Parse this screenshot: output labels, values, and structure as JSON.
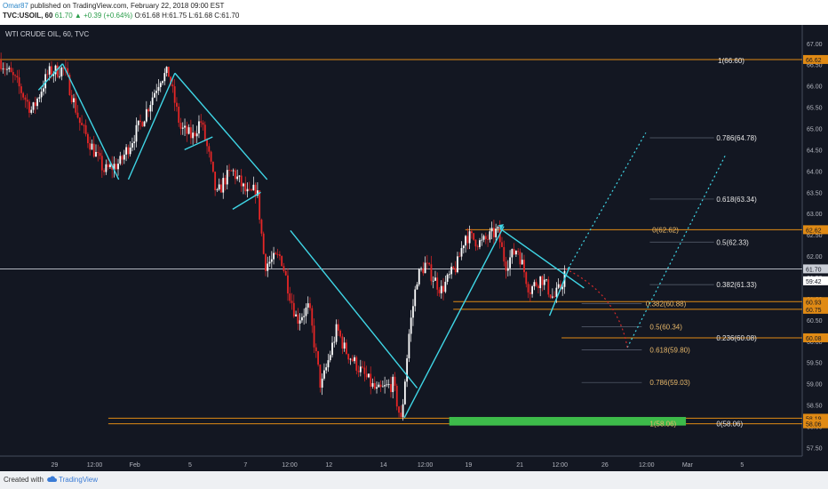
{
  "header": {
    "author": "Omar87",
    "published": "published on TradingView.com, February 22, 2018 09:00 EST",
    "symbol_line": "TVC:USOIL, 60",
    "change": "61.70 ▲ +0.39 (+0.64%)",
    "ohlc": "O:61.68 H:61.75 L:61.68 C:61.70"
  },
  "footer": {
    "created_with": "Created with",
    "brand": "TradingView"
  },
  "chart_data": {
    "type": "candlestick",
    "title": "WTI CRUDE OIL, 60, TVC",
    "ylim": [
      57.3,
      67.35
    ],
    "y_ticks": [
      57.5,
      58.0,
      58.5,
      59.0,
      59.5,
      60.0,
      60.5,
      61.0,
      61.5,
      62.0,
      62.5,
      63.0,
      63.5,
      64.0,
      64.5,
      65.0,
      65.5,
      66.0,
      66.5,
      67.0
    ],
    "x_ticks": [
      "29",
      "12:00",
      "Feb",
      "5",
      "7",
      "12:00",
      "12",
      "14",
      "12:00",
      "19",
      "21",
      "12:00",
      "26",
      "12:00",
      "Mar",
      "5"
    ],
    "x_tick_pos": [
      0.068,
      0.118,
      0.168,
      0.237,
      0.306,
      0.361,
      0.41,
      0.478,
      0.53,
      0.584,
      0.648,
      0.698,
      0.754,
      0.806,
      0.857,
      0.925
    ],
    "price_waypoints": [
      [
        0,
        66.6
      ],
      [
        0.02,
        66.1
      ],
      [
        0.04,
        65.4
      ],
      [
        0.06,
        66.3
      ],
      [
        0.08,
        66.4
      ],
      [
        0.1,
        65.1
      ],
      [
        0.13,
        64.0
      ],
      [
        0.15,
        64.2
      ],
      [
        0.18,
        65.3
      ],
      [
        0.2,
        66.2
      ],
      [
        0.21,
        66.3
      ],
      [
        0.225,
        65.0
      ],
      [
        0.24,
        64.8
      ],
      [
        0.25,
        65.2
      ],
      [
        0.26,
        64.4
      ],
      [
        0.27,
        63.4
      ],
      [
        0.28,
        63.8
      ],
      [
        0.29,
        64.0
      ],
      [
        0.31,
        63.4
      ],
      [
        0.32,
        63.6
      ],
      [
        0.33,
        61.8
      ],
      [
        0.35,
        62.0
      ],
      [
        0.36,
        61.2
      ],
      [
        0.37,
        60.5
      ],
      [
        0.385,
        60.8
      ],
      [
        0.4,
        58.9
      ],
      [
        0.42,
        60.3
      ],
      [
        0.43,
        59.8
      ],
      [
        0.45,
        59.3
      ],
      [
        0.47,
        58.8
      ],
      [
        0.49,
        59.0
      ],
      [
        0.5,
        58.1
      ],
      [
        0.51,
        60.2
      ],
      [
        0.52,
        61.5
      ],
      [
        0.53,
        61.8
      ],
      [
        0.55,
        61.2
      ],
      [
        0.57,
        61.8
      ],
      [
        0.58,
        62.5
      ],
      [
        0.6,
        62.3
      ],
      [
        0.62,
        62.6
      ],
      [
        0.63,
        61.8
      ],
      [
        0.645,
        62.2
      ],
      [
        0.66,
        61.2
      ],
      [
        0.675,
        61.5
      ],
      [
        0.69,
        61.0
      ],
      [
        0.7,
        61.3
      ],
      [
        0.705,
        61.7
      ]
    ],
    "price_labels": [
      {
        "value": 66.62,
        "label": "66.62"
      },
      {
        "value": 62.62,
        "label": "62.62"
      },
      {
        "value": 61.7,
        "label": "61.70"
      },
      {
        "value": 61.42,
        "label": "59:42"
      },
      {
        "value": 60.93,
        "label": "60.93"
      },
      {
        "value": 60.75,
        "label": "60.75"
      },
      {
        "value": 60.08,
        "label": "60.08"
      },
      {
        "value": 58.19,
        "label": "58.19"
      },
      {
        "value": 58.06,
        "label": "58.06"
      }
    ],
    "fib_levels": [
      {
        "label": "1(66.60)",
        "value": 66.6
      },
      {
        "label": "0.786(64.78)",
        "value": 64.78
      },
      {
        "label": "0.618(63.34)",
        "value": 63.34
      },
      {
        "label": "0(62.62)",
        "value": 62.62
      },
      {
        "label": "0.5(62.33)",
        "value": 62.33
      },
      {
        "label": "0.382(61.33)",
        "value": 61.33
      },
      {
        "label": "0.382(60.88)",
        "value": 60.88
      },
      {
        "label": "0.5(60.34)",
        "value": 60.34
      },
      {
        "label": "0.236(60.08)",
        "value": 60.08
      },
      {
        "label": "0.618(59.80)",
        "value": 59.8
      },
      {
        "label": "0.786(59.03)",
        "value": 59.03
      },
      {
        "label": "1(58.06)",
        "value": 58.06
      },
      {
        "label": "0(58.06)",
        "value": 58.06
      }
    ],
    "colors": {
      "background": "#131722",
      "axis_bg": "#131722",
      "up": "#ffffff",
      "down": "#e62626",
      "trendline": "#3fd6e6",
      "fib_line": "#e08a14",
      "fib_text": "#e8b86a",
      "green_zone": "#3dbb4a",
      "projection_red": "#d42a2a"
    }
  }
}
